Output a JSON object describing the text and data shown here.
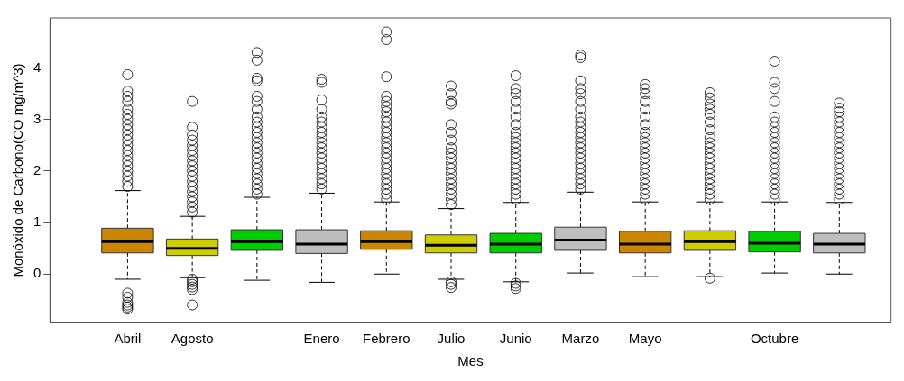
{
  "chart_data": {
    "type": "box",
    "xlabel": "Mes",
    "ylabel": "Monóxido de Carbono(CO mg/m^3)",
    "categories": [
      "Abril",
      "Agosto",
      null,
      "Enero",
      "Febrero",
      "Julio",
      "Junio",
      "Marzo",
      "Mayo",
      null,
      "Octubre",
      null
    ],
    "colors": [
      "#cd8500",
      "#cdcd00",
      "#00cd00",
      "#bebebe",
      "#cd8500",
      "#cdcd00",
      "#00cd00",
      "#bebebe",
      "#cd8500",
      "#cdcd00",
      "#00cd00",
      "#bebebe"
    ],
    "ylim": [
      -0.94,
      4.97
    ],
    "yticks": [
      0,
      1,
      2,
      3,
      4
    ],
    "grid": false,
    "boxes": [
      {
        "low": -0.1,
        "q1": 0.41,
        "median": 0.63,
        "q3": 0.89,
        "high": 1.62,
        "outliers": [
          -0.68,
          -0.64,
          -0.6,
          -0.55,
          -0.45,
          -0.37,
          1.7,
          1.8,
          1.9,
          2.0,
          2.1,
          2.2,
          2.3,
          2.4,
          2.5,
          2.6,
          2.7,
          2.8,
          2.9,
          3.0,
          3.1,
          3.2,
          3.35,
          3.45,
          3.55,
          3.87
        ]
      },
      {
        "low": -0.07,
        "q1": 0.36,
        "median": 0.5,
        "q3": 0.68,
        "high": 1.12,
        "outliers": [
          -0.6,
          -0.3,
          -0.25,
          -0.2,
          -0.15,
          -0.1,
          1.2,
          1.3,
          1.4,
          1.5,
          1.6,
          1.7,
          1.8,
          1.9,
          2.0,
          2.1,
          2.2,
          2.3,
          2.4,
          2.5,
          2.6,
          2.7,
          2.85,
          3.35
        ]
      },
      {
        "low": -0.12,
        "q1": 0.46,
        "median": 0.63,
        "q3": 0.86,
        "high": 1.49,
        "outliers": [
          1.55,
          1.65,
          1.75,
          1.85,
          1.95,
          2.05,
          2.15,
          2.25,
          2.35,
          2.45,
          2.55,
          2.65,
          2.75,
          2.85,
          2.95,
          3.05,
          3.2,
          3.35,
          3.45,
          3.75,
          3.8,
          4.15,
          4.3
        ]
      },
      {
        "low": -0.16,
        "q1": 0.4,
        "median": 0.58,
        "q3": 0.86,
        "high": 1.57,
        "outliers": [
          1.65,
          1.75,
          1.85,
          1.95,
          2.05,
          2.15,
          2.25,
          2.35,
          2.45,
          2.55,
          2.65,
          2.75,
          2.85,
          2.95,
          3.05,
          3.2,
          3.38,
          3.72,
          3.78
        ]
      },
      {
        "low": 0,
        "q1": 0.48,
        "median": 0.63,
        "q3": 0.84,
        "high": 1.4,
        "outliers": [
          1.45,
          1.55,
          1.65,
          1.75,
          1.85,
          1.95,
          2.05,
          2.15,
          2.25,
          2.35,
          2.45,
          2.55,
          2.65,
          2.75,
          2.85,
          2.95,
          3.05,
          3.15,
          3.25,
          3.35,
          3.45,
          3.83,
          4.55,
          4.7
        ]
      },
      {
        "low": -0.1,
        "q1": 0.41,
        "median": 0.56,
        "q3": 0.76,
        "high": 1.27,
        "outliers": [
          -0.26,
          -0.2,
          -0.15,
          1.35,
          1.45,
          1.55,
          1.65,
          1.75,
          1.85,
          1.95,
          2.05,
          2.15,
          2.25,
          2.35,
          2.45,
          2.6,
          2.75,
          2.9,
          3.3,
          3.35,
          3.5,
          3.65
        ]
      },
      {
        "low": -0.15,
        "q1": 0.41,
        "median": 0.58,
        "q3": 0.79,
        "high": 1.39,
        "outliers": [
          -0.28,
          -0.23,
          -0.18,
          1.45,
          1.55,
          1.65,
          1.75,
          1.85,
          1.95,
          2.05,
          2.15,
          2.25,
          2.35,
          2.45,
          2.55,
          2.65,
          2.75,
          2.9,
          3.05,
          3.2,
          3.35,
          3.5,
          3.6,
          3.85
        ]
      },
      {
        "low": 0.02,
        "q1": 0.46,
        "median": 0.66,
        "q3": 0.91,
        "high": 1.59,
        "outliers": [
          1.65,
          1.75,
          1.85,
          1.95,
          2.05,
          2.15,
          2.25,
          2.35,
          2.45,
          2.55,
          2.65,
          2.75,
          2.85,
          2.95,
          3.05,
          3.2,
          3.35,
          3.5,
          3.6,
          3.75,
          4.2,
          4.25
        ]
      },
      {
        "low": -0.05,
        "q1": 0.41,
        "median": 0.58,
        "q3": 0.83,
        "high": 1.4,
        "outliers": [
          1.45,
          1.55,
          1.65,
          1.75,
          1.85,
          1.95,
          2.05,
          2.15,
          2.25,
          2.35,
          2.45,
          2.55,
          2.65,
          2.75,
          2.9,
          3.05,
          3.2,
          3.35,
          3.5,
          3.6,
          3.68
        ]
      },
      {
        "low": -0.05,
        "q1": 0.46,
        "median": 0.63,
        "q3": 0.84,
        "high": 1.4,
        "outliers": [
          -0.08,
          1.45,
          1.55,
          1.65,
          1.75,
          1.85,
          1.95,
          2.05,
          2.15,
          2.25,
          2.35,
          2.45,
          2.55,
          2.65,
          2.8,
          2.95,
          3.1,
          3.2,
          3.3,
          3.42,
          3.52
        ]
      },
      {
        "low": 0.02,
        "q1": 0.43,
        "median": 0.6,
        "q3": 0.83,
        "high": 1.4,
        "outliers": [
          1.45,
          1.55,
          1.65,
          1.75,
          1.85,
          1.95,
          2.05,
          2.15,
          2.25,
          2.35,
          2.45,
          2.55,
          2.65,
          2.75,
          2.85,
          2.95,
          3.05,
          3.35,
          3.6,
          3.72,
          4.13
        ]
      },
      {
        "low": 0,
        "q1": 0.41,
        "median": 0.58,
        "q3": 0.79,
        "high": 1.39,
        "outliers": [
          1.45,
          1.55,
          1.65,
          1.75,
          1.85,
          1.95,
          2.05,
          2.15,
          2.25,
          2.35,
          2.45,
          2.55,
          2.65,
          2.75,
          2.85,
          2.95,
          3.05,
          3.15,
          3.22,
          3.32
        ]
      }
    ]
  }
}
